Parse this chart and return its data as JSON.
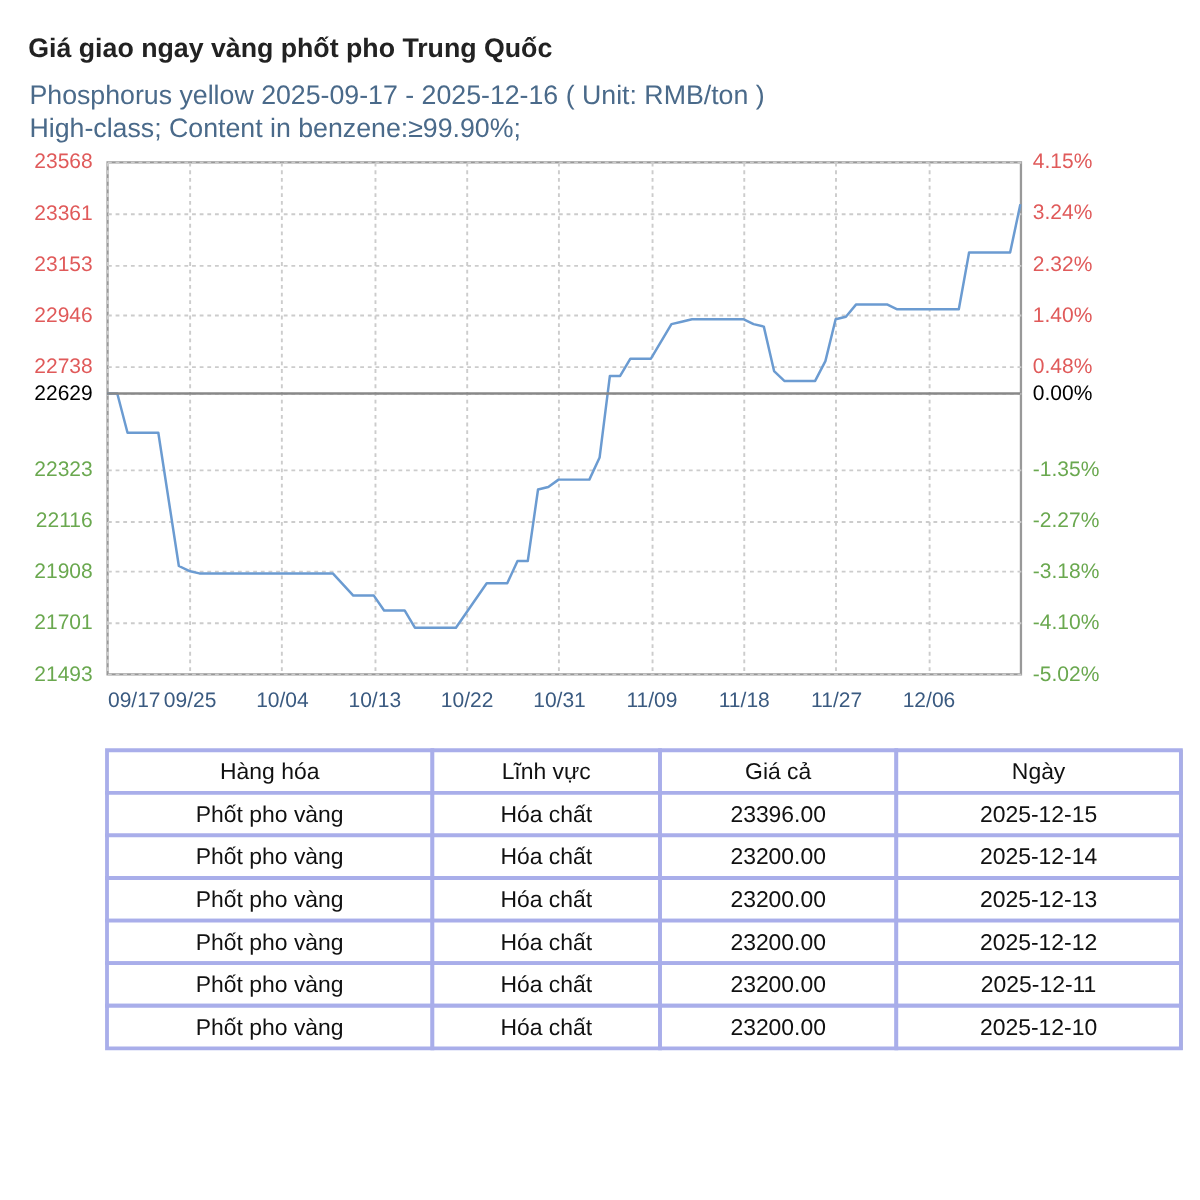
{
  "chart_data": {
    "type": "line",
    "title": "Giá giao ngay vàng phốt pho Trung Quốc",
    "subtitle": "Phosphorus yellow 2025-09-17 - 2025-12-16    ( Unit: RMB/ton )\nHigh-class; Content in benzene:≥99.90%;",
    "x": [
      "2025-09-17",
      "2025-09-18",
      "2025-09-19",
      "2025-09-22",
      "2025-09-24",
      "2025-09-25",
      "2025-09-26",
      "2025-10-09",
      "2025-10-11",
      "2025-10-13",
      "2025-10-14",
      "2025-10-16",
      "2025-10-17",
      "2025-10-21",
      "2025-10-24",
      "2025-10-26",
      "2025-10-27",
      "2025-10-28",
      "2025-10-29",
      "2025-10-30",
      "2025-10-31",
      "2025-11-03",
      "2025-11-04",
      "2025-11-05",
      "2025-11-06",
      "2025-11-07",
      "2025-11-09",
      "2025-11-11",
      "2025-11-12",
      "2025-11-13",
      "2025-11-18",
      "2025-11-19",
      "2025-11-20",
      "2025-11-21",
      "2025-11-22",
      "2025-11-25",
      "2025-11-26",
      "2025-11-27",
      "2025-11-28",
      "2025-11-29",
      "2025-12-02",
      "2025-12-03",
      "2025-12-09",
      "2025-12-10",
      "2025-12-14",
      "2025-12-15"
    ],
    "series": [
      {
        "color": "#6b9bd1",
        "values": [
          22629,
          22629,
          22470,
          22470,
          21930,
          21910,
          21900,
          21900,
          21810,
          21810,
          21750,
          21750,
          21680,
          21680,
          21860,
          21860,
          21950,
          21950,
          22240,
          22250,
          22280,
          22280,
          22370,
          22700,
          22700,
          22770,
          22770,
          22910,
          22920,
          22930,
          22930,
          22910,
          22900,
          22720,
          22680,
          22680,
          22760,
          22930,
          22940,
          22990,
          22990,
          22970,
          22970,
          23200,
          23200,
          23396
        ]
      }
    ],
    "xlim": [
      "2025-09-17",
      "2025-12-15"
    ],
    "xticks": [
      {
        "value": "2025-09-17",
        "label": "09/17"
      },
      {
        "value": "2025-09-25",
        "label": "09/25"
      },
      {
        "value": "2025-10-04",
        "label": "10/04"
      },
      {
        "value": "2025-10-13",
        "label": "10/13"
      },
      {
        "value": "2025-10-22",
        "label": "10/22"
      },
      {
        "value": "2025-10-31",
        "label": "10/31"
      },
      {
        "value": "2025-11-09",
        "label": "11/09"
      },
      {
        "value": "2025-11-18",
        "label": "11/18"
      },
      {
        "value": "2025-11-27",
        "label": "11/27"
      },
      {
        "value": "2025-12-06",
        "label": "12/06"
      }
    ],
    "ylim": [
      21493,
      23568
    ],
    "yticks": [
      23568,
      23361,
      23153,
      22946,
      22738,
      22629,
      22323,
      22116,
      21908,
      21701,
      21493
    ],
    "y2lim": [
      -5.02,
      4.15
    ],
    "y2ticks": [
      {
        "value": 4.15,
        "label": "4.15%"
      },
      {
        "value": 3.24,
        "label": "3.24%"
      },
      {
        "value": 2.32,
        "label": "2.32%"
      },
      {
        "value": 1.4,
        "label": "1.40%"
      },
      {
        "value": 0.48,
        "label": "0.48%"
      },
      {
        "value": 0,
        "label": "0.00%"
      },
      {
        "value": -1.35,
        "label": "-1.35%"
      },
      {
        "value": -2.27,
        "label": "-2.27%"
      },
      {
        "value": -3.18,
        "label": "-3.18%"
      },
      {
        "value": -4.1,
        "label": "-4.10%"
      },
      {
        "value": -5.02,
        "label": "-5.02%"
      }
    ],
    "ref_lines": [
      {
        "axis": "y",
        "value": 22629,
        "color": "#888888"
      }
    ],
    "grid": true,
    "annotations": [
      "Hàng hóa",
      "Lĩnh vực",
      "Giá cả",
      "Ngày",
      "Phốt pho vàng",
      "Hóa chất",
      "23396.00",
      "2025-12-15",
      "Phốt pho vàng",
      "Hóa chất",
      "23200.00",
      "2025-12-14",
      "Phốt pho vàng",
      "Hóa chất",
      "23200.00",
      "2025-12-13",
      "Phốt pho vàng",
      "Hóa chất",
      "23200.00",
      "2025-12-12",
      "Phốt pho vàng",
      "Hóa chất",
      "23200.00",
      "2025-12-11",
      "Phốt pho vàng",
      "Hóa chất",
      "23200.00",
      "2025-12-10"
    ]
  }
}
